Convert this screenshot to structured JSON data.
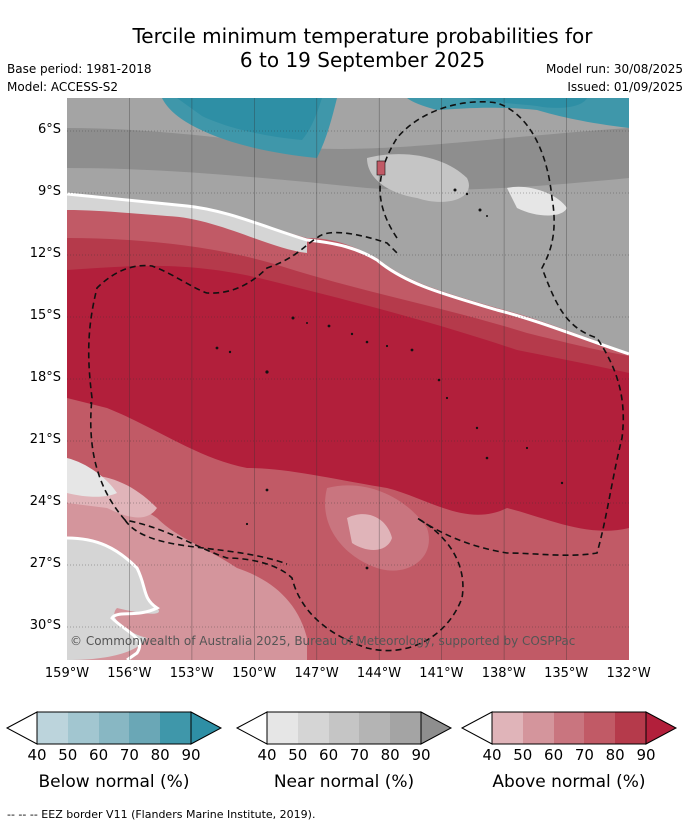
{
  "title": {
    "line1": "Tercile minimum temperature probabilities for",
    "line2": "6 to 19 September 2025"
  },
  "meta": {
    "base_period": "Base period: 1981-2018",
    "model": "Model: ACCESS-S2",
    "model_run": "Model run: 30/08/2025",
    "issued": "Issued: 01/09/2025"
  },
  "map": {
    "latitude_labels": [
      "6°S",
      "9°S",
      "12°S",
      "15°S",
      "18°S",
      "21°S",
      "24°S",
      "27°S",
      "30°S"
    ],
    "longitude_labels": [
      "159°W",
      "156°W",
      "153°W",
      "150°W",
      "147°W",
      "144°W",
      "141°W",
      "138°W",
      "135°W",
      "132°W"
    ],
    "copyright": "© Commonwealth of Australia 2025, Bureau of Meteorology, supported by COSPPac",
    "colors": {
      "below": [
        "#bcd4dc",
        "#a2c6d0",
        "#88b7c3",
        "#6aa7b6",
        "#3f97aa",
        "#2e8fa5"
      ],
      "near": [
        "#e6e6e6",
        "#d5d5d5",
        "#c5c5c5",
        "#b4b4b4",
        "#a4a4a4",
        "#8e8e8e"
      ],
      "above": [
        "#e0b4b9",
        "#d4959c",
        "#c9757f",
        "#c15a66",
        "#b53a4b",
        "#b21f3b"
      ]
    }
  },
  "legend": {
    "ticks": [
      "40",
      "50",
      "60",
      "70",
      "80",
      "90"
    ],
    "below_title": "Below normal (%)",
    "near_title": "Near normal (%)",
    "above_title": "Above normal (%)"
  },
  "footnote": "--  --  -- EEZ border V11 (Flanders Marine Institute, 2019)."
}
